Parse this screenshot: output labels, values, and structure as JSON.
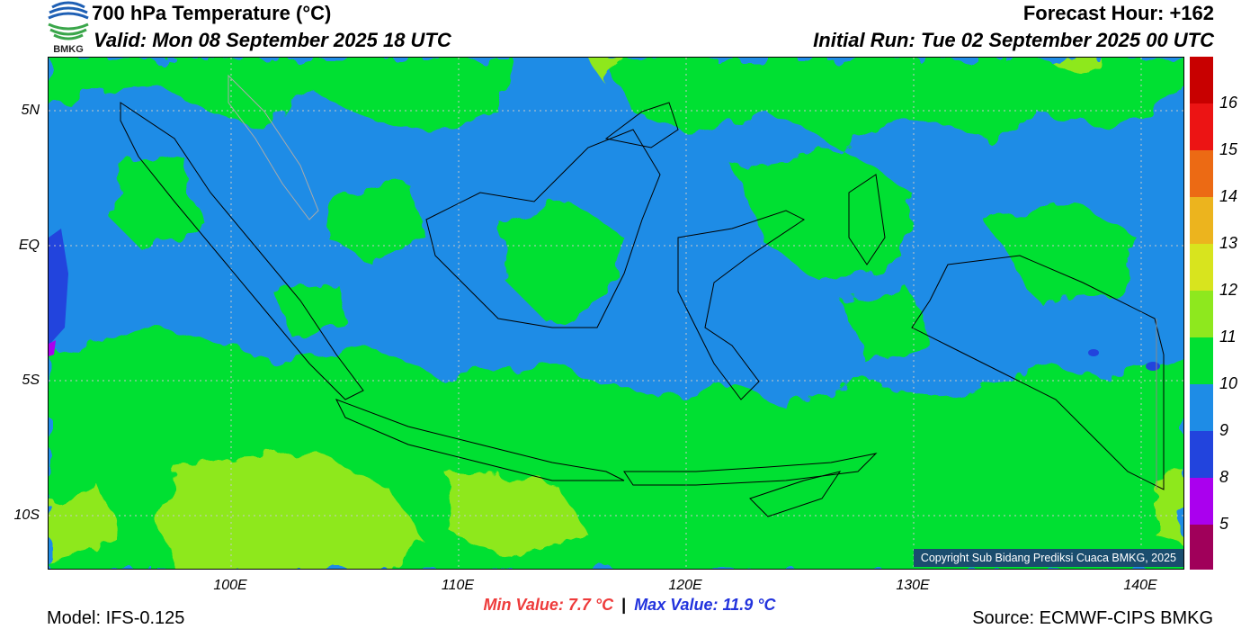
{
  "header": {
    "title": "700 hPa Temperature (°C)",
    "valid": "Valid: Mon 08 September 2025 18 UTC",
    "forecast_hour": "Forecast Hour: +162",
    "initial_run": "Initial Run: Tue 02 September 2025 00 UTC"
  },
  "logo": {
    "text": "BMKG",
    "icon": "bmkg-logo-icon"
  },
  "map": {
    "lat_labels": [
      "5N",
      "EQ",
      "5S",
      "10S"
    ],
    "lon_labels": [
      "100E",
      "110E",
      "120E",
      "130E",
      "140E"
    ],
    "copyright": "Copyright Sub Bidang Prediksi Cuaca BMKG, 2025",
    "colors": {
      "ocean_base": "#1e90ff",
      "green": "#00e040",
      "yellowgreen": "#8ee81e"
    }
  },
  "colorbar": {
    "labels": [
      "5",
      "8",
      "9",
      "10",
      "11",
      "12",
      "13",
      "14",
      "15",
      "16"
    ],
    "colors": [
      "#a0005a",
      "#aa00ee",
      "#2244dd",
      "#1e8ce6",
      "#00e032",
      "#8ee81e",
      "#d8e41e",
      "#ecb41e",
      "#ec6a14",
      "#ec1414",
      "#c80000"
    ]
  },
  "footer": {
    "min_value": "Min Value: 7.7 °C",
    "separator": "|",
    "max_value": "Max Value: 11.9 °C",
    "model": "Model: IFS-0.125",
    "source": "Source: ECMWF-CIPS BMKG"
  }
}
